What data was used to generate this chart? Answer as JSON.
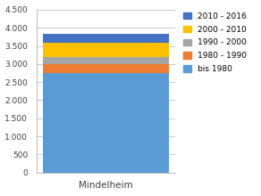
{
  "categories": [
    "Mindelheim"
  ],
  "segments": [
    {
      "label": "bis 1980",
      "value": 2750,
      "color": "#5B9BD5"
    },
    {
      "label": "1980 - 1990",
      "value": 250,
      "color": "#ED7D31"
    },
    {
      "label": "1990 - 2000",
      "value": 200,
      "color": "#A5A5A5"
    },
    {
      "label": "2000 - 2010",
      "value": 400,
      "color": "#FFC000"
    },
    {
      "label": "2010 - 2016",
      "value": 230,
      "color": "#4472C4"
    }
  ],
  "ylim": [
    0,
    4500
  ],
  "yticks": [
    0,
    500,
    1000,
    1500,
    2000,
    2500,
    3000,
    3500,
    4000,
    4500
  ],
  "ytick_labels": [
    "0",
    "500",
    "1.000",
    "1.500",
    "2.000",
    "2.500",
    "3.000",
    "3.500",
    "4.000",
    "4.500"
  ],
  "plot_bg_color": "#FFFFFF",
  "fig_bg_color": "#FFFFFF",
  "grid_color": "#C0C0C0",
  "legend_order": [
    4,
    3,
    2,
    1,
    0
  ],
  "bar_width": 0.45,
  "spine_color": "#BFBFBF"
}
